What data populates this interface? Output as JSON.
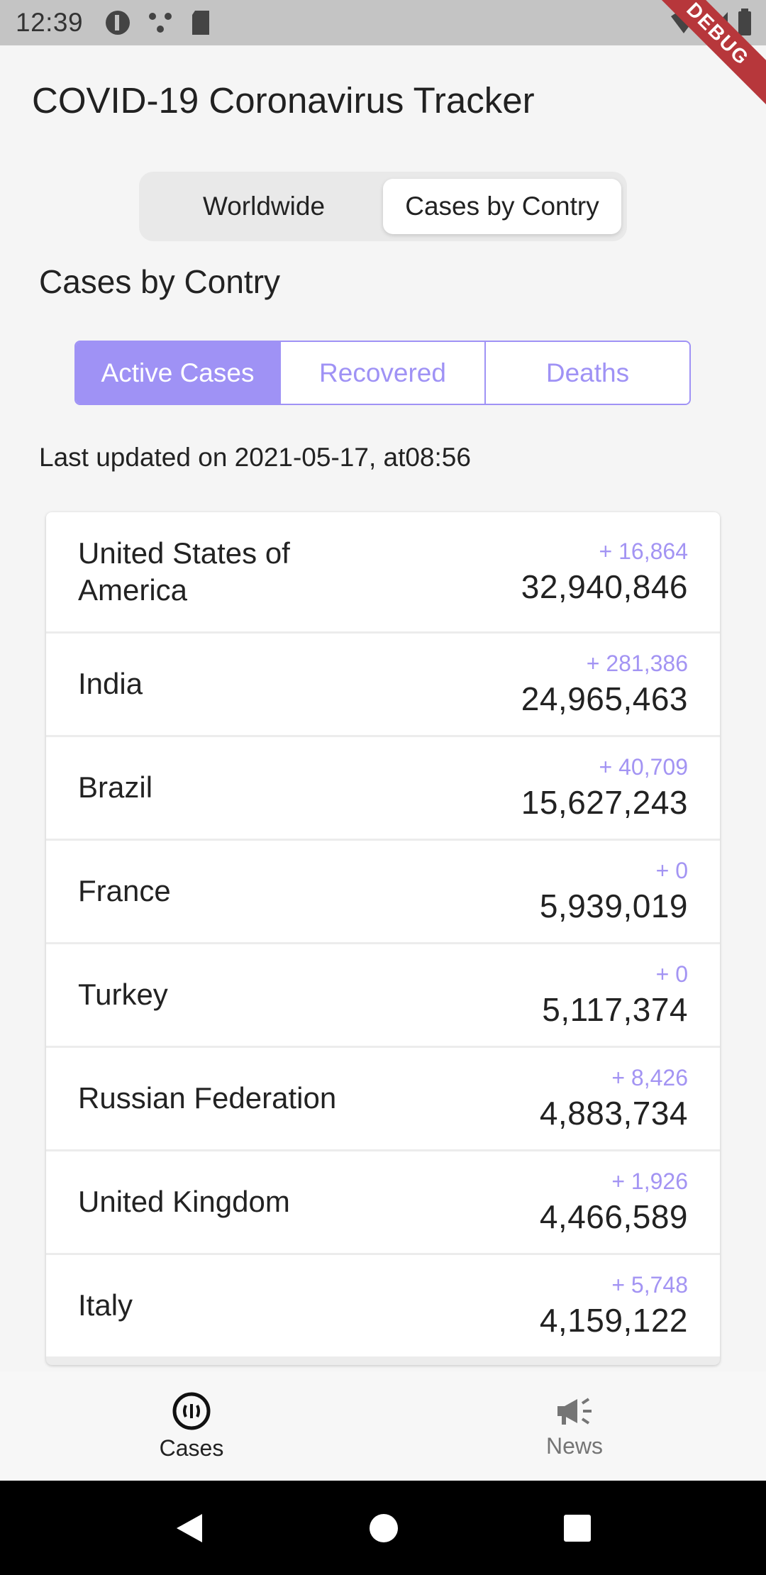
{
  "status_bar": {
    "time": "12:39",
    "debug_label": "DEBUG"
  },
  "header": {
    "title": "COVID-19 Coronavirus Tracker"
  },
  "segment": {
    "items": [
      "Worldwide",
      "Cases by Contry"
    ],
    "selected": "Cases by Contry"
  },
  "section": {
    "title": "Cases by Contry"
  },
  "tabs": {
    "items": [
      "Active Cases",
      "Recovered",
      "Deaths"
    ],
    "selected": "Active Cases"
  },
  "last_updated": "Last updated on 2021-05-17, at08:56",
  "rows": [
    {
      "country": "United States of America",
      "delta": "+ 16,864",
      "total": "32,940,846"
    },
    {
      "country": "India",
      "delta": "+ 281,386",
      "total": "24,965,463"
    },
    {
      "country": "Brazil",
      "delta": "+ 40,709",
      "total": "15,627,243"
    },
    {
      "country": "France",
      "delta": "+ 0",
      "total": "5,939,019"
    },
    {
      "country": "Turkey",
      "delta": "+ 0",
      "total": "5,117,374"
    },
    {
      "country": "Russian Federation",
      "delta": "+ 8,426",
      "total": "4,883,734"
    },
    {
      "country": "United Kingdom",
      "delta": "+ 1,926",
      "total": "4,466,589"
    },
    {
      "country": "Italy",
      "delta": "+ 5,748",
      "total": "4,159,122"
    }
  ],
  "bottom_nav": {
    "items": [
      {
        "label": "Cases",
        "icon": "cases-icon"
      },
      {
        "label": "News",
        "icon": "megaphone-icon"
      }
    ],
    "selected": "Cases"
  },
  "colors": {
    "accent": "#9f92f5",
    "delta": "#a394f3",
    "debug": "#b7373b"
  }
}
